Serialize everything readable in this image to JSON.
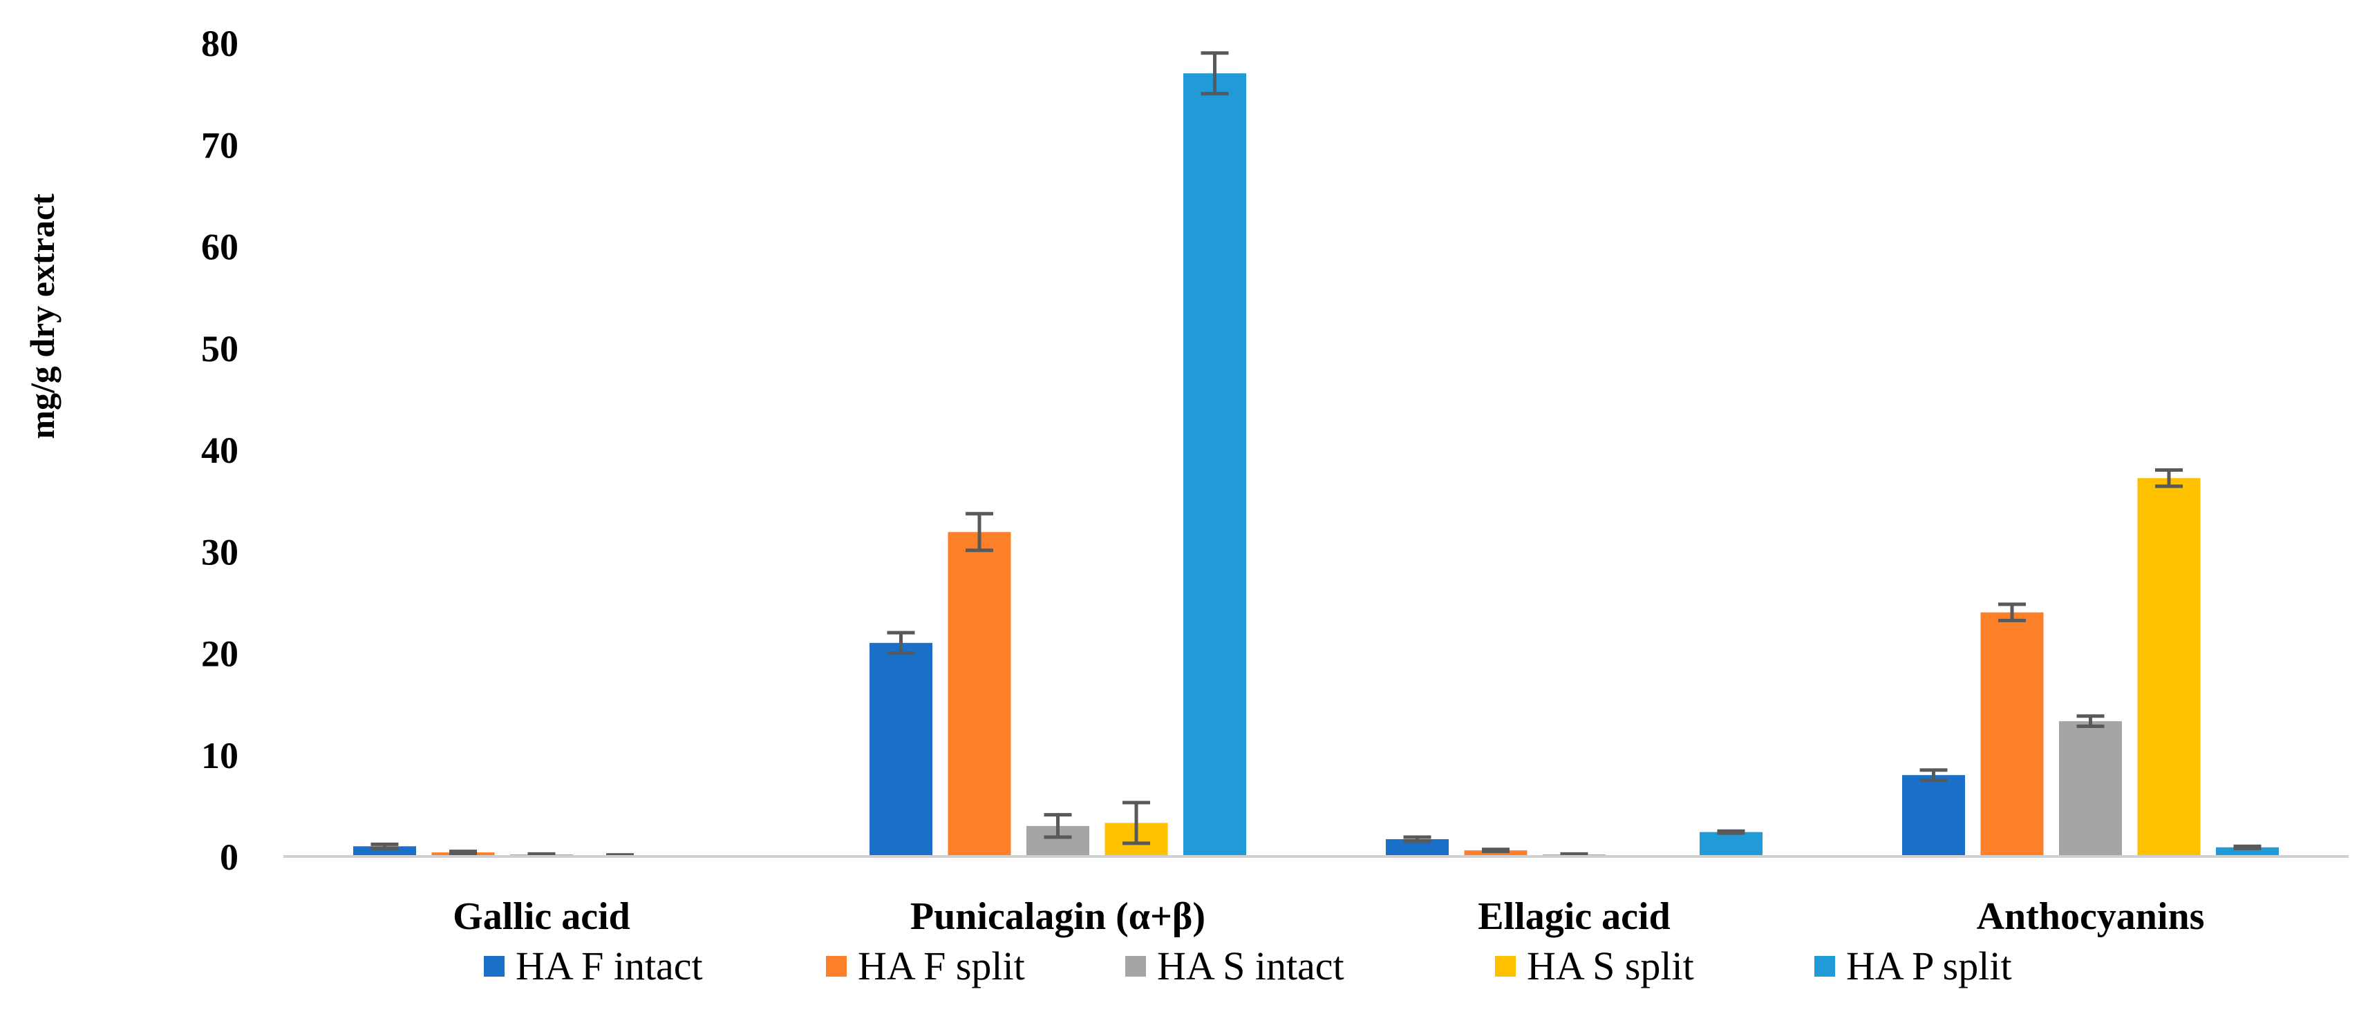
{
  "chart_data": {
    "type": "bar",
    "title": "",
    "xlabel": "",
    "ylabel": "mg/g dry extract",
    "ylim": [
      0,
      80
    ],
    "yticks": [
      0,
      10,
      20,
      30,
      40,
      50,
      60,
      70,
      80
    ],
    "gridlines": false,
    "legend_position": "bottom",
    "categories": [
      "Gallic acid",
      "Punicalagin (α+β)",
      "Ellagic acid",
      "Anthocyanins"
    ],
    "series": [
      {
        "name": "HA F intact",
        "color": "#1a6fc8",
        "values": [
          1.0,
          21.0,
          1.7,
          8.0
        ],
        "errors": [
          0.2,
          1.0,
          0.2,
          0.5
        ]
      },
      {
        "name": "HA F split",
        "color": "#fd7f28",
        "values": [
          0.4,
          31.9,
          0.6,
          24.0
        ],
        "errors": [
          0.1,
          1.8,
          0.1,
          0.8
        ]
      },
      {
        "name": "HA S intact",
        "color": "#a5a5a5",
        "values": [
          0.2,
          3.0,
          0.2,
          13.3
        ],
        "errors": [
          0.05,
          1.1,
          0.05,
          0.5
        ]
      },
      {
        "name": "HA S split",
        "color": "#ffc000",
        "values": [
          0.1,
          3.3,
          0.0,
          37.2
        ],
        "errors": [
          0.05,
          2.0,
          0.0,
          0.8
        ]
      },
      {
        "name": "HA P split",
        "color": "#209bd8",
        "values": [
          0.0,
          77.0,
          2.4,
          0.9
        ],
        "errors": [
          0.0,
          2.0,
          0.1,
          0.1
        ]
      }
    ]
  }
}
